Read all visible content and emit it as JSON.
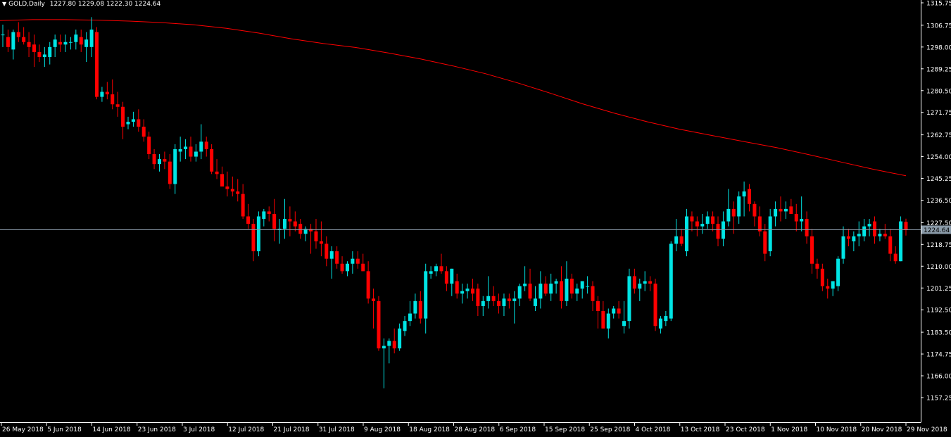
{
  "header": {
    "symbol_timeframe": "GOLD,Daily",
    "ohlc": "1227.80 1229.08 1222.30 1224.64",
    "menu_icon": "triangle-down-icon"
  },
  "chart_data": {
    "type": "candlestick",
    "title": "GOLD,Daily",
    "bull_color": "#00e5e5",
    "bear_color": "#ff0000",
    "ma_color": "#ff0000",
    "grid": false,
    "ylim": [
      1157.25,
      1315.75
    ],
    "y_ticks": [
      "1315.75",
      "1306.75",
      "1298.00",
      "1289.25",
      "1280.50",
      "1271.75",
      "1262.75",
      "1254.00",
      "1245.25",
      "1236.50",
      "1227.50",
      "1218.75",
      "1210.00",
      "1201.25",
      "1192.50",
      "1183.50",
      "1174.75",
      "1166.00",
      "1157.25"
    ],
    "x_ticks": [
      "26 May 2018",
      "5 Jun 2018",
      "14 Jun 2018",
      "23 Jun 2018",
      "3 Jul 2018",
      "12 Jul 2018",
      "21 Jul 2018",
      "31 Jul 2018",
      "9 Aug 2018",
      "18 Aug 2018",
      "28 Aug 2018",
      "6 Sep 2018",
      "15 Sep 2018",
      "25 Sep 2018",
      "4 Oct 2018",
      "13 Oct 2018",
      "23 Oct 2018",
      "1 Nov 2018",
      "10 Nov 2018",
      "20 Nov 2018",
      "29 Nov 2018"
    ],
    "current_price": 1224.64,
    "current_price_label": "1224.64",
    "moving_average": [
      1308.6,
      1309.0,
      1309.0,
      1308.8,
      1308.4,
      1307.8,
      1306.9,
      1305.5,
      1303.6,
      1301.3,
      1299.4,
      1297.8,
      1295.6,
      1293.2,
      1290.4,
      1287.3,
      1283.6,
      1279.5,
      1275.2,
      1271.4,
      1268.0,
      1265.0,
      1262.5,
      1260.0,
      1257.6,
      1254.8,
      1251.8,
      1248.9,
      1246.3
    ],
    "candles": [
      {
        "o": 1303.0,
        "h": 1307.0,
        "l": 1298.0,
        "c": 1303.0
      },
      {
        "o": 1302.0,
        "h": 1305.0,
        "l": 1296.0,
        "c": 1298.0
      },
      {
        "o": 1297.0,
        "h": 1305.0,
        "l": 1293.0,
        "c": 1304.0
      },
      {
        "o": 1304.0,
        "h": 1308.0,
        "l": 1300.0,
        "c": 1302.0
      },
      {
        "o": 1302.0,
        "h": 1306.0,
        "l": 1299.0,
        "c": 1300.0
      },
      {
        "o": 1300.0,
        "h": 1304.0,
        "l": 1294.0,
        "c": 1298.0
      },
      {
        "o": 1299.0,
        "h": 1303.0,
        "l": 1290.0,
        "c": 1296.0
      },
      {
        "o": 1296.0,
        "h": 1299.0,
        "l": 1292.0,
        "c": 1294.0
      },
      {
        "o": 1294.0,
        "h": 1298.0,
        "l": 1290.0,
        "c": 1295.0
      },
      {
        "o": 1294.0,
        "h": 1300.0,
        "l": 1291.0,
        "c": 1298.0
      },
      {
        "o": 1298.0,
        "h": 1303.0,
        "l": 1294.0,
        "c": 1301.0
      },
      {
        "o": 1300.0,
        "h": 1303.0,
        "l": 1296.0,
        "c": 1299.0
      },
      {
        "o": 1299.0,
        "h": 1303.0,
        "l": 1296.0,
        "c": 1300.0
      },
      {
        "o": 1300.0,
        "h": 1302.0,
        "l": 1297.0,
        "c": 1300.0
      },
      {
        "o": 1300.0,
        "h": 1305.0,
        "l": 1297.0,
        "c": 1303.0
      },
      {
        "o": 1302.0,
        "h": 1305.0,
        "l": 1296.0,
        "c": 1299.0
      },
      {
        "o": 1298.0,
        "h": 1304.0,
        "l": 1292.0,
        "c": 1301.0
      },
      {
        "o": 1298.0,
        "h": 1310.0,
        "l": 1294.0,
        "c": 1305.0
      },
      {
        "o": 1304.0,
        "h": 1306.0,
        "l": 1277.0,
        "c": 1278.0
      },
      {
        "o": 1278.0,
        "h": 1282.0,
        "l": 1276.0,
        "c": 1280.0
      },
      {
        "o": 1280.0,
        "h": 1284.0,
        "l": 1277.0,
        "c": 1279.0
      },
      {
        "o": 1279.0,
        "h": 1285.0,
        "l": 1273.0,
        "c": 1275.0
      },
      {
        "o": 1275.0,
        "h": 1280.0,
        "l": 1270.0,
        "c": 1274.0
      },
      {
        "o": 1274.0,
        "h": 1276.0,
        "l": 1261.0,
        "c": 1266.0
      },
      {
        "o": 1267.0,
        "h": 1270.0,
        "l": 1265.0,
        "c": 1268.0
      },
      {
        "o": 1268.0,
        "h": 1272.0,
        "l": 1266.0,
        "c": 1269.0
      },
      {
        "o": 1269.0,
        "h": 1273.0,
        "l": 1264.0,
        "c": 1266.0
      },
      {
        "o": 1266.0,
        "h": 1269.0,
        "l": 1260.0,
        "c": 1262.0
      },
      {
        "o": 1262.0,
        "h": 1264.0,
        "l": 1253.0,
        "c": 1255.0
      },
      {
        "o": 1255.0,
        "h": 1257.0,
        "l": 1249.0,
        "c": 1251.0
      },
      {
        "o": 1251.0,
        "h": 1255.0,
        "l": 1248.0,
        "c": 1253.0
      },
      {
        "o": 1253.0,
        "h": 1256.0,
        "l": 1249.0,
        "c": 1252.0
      },
      {
        "o": 1252.0,
        "h": 1255.0,
        "l": 1241.0,
        "c": 1243.0
      },
      {
        "o": 1243.0,
        "h": 1259.0,
        "l": 1239.0,
        "c": 1257.0
      },
      {
        "o": 1256.0,
        "h": 1262.0,
        "l": 1252.0,
        "c": 1257.0
      },
      {
        "o": 1257.0,
        "h": 1261.0,
        "l": 1253.0,
        "c": 1258.0
      },
      {
        "o": 1258.0,
        "h": 1262.0,
        "l": 1252.0,
        "c": 1254.0
      },
      {
        "o": 1254.0,
        "h": 1259.0,
        "l": 1252.0,
        "c": 1256.0
      },
      {
        "o": 1256.0,
        "h": 1267.0,
        "l": 1253.0,
        "c": 1260.0
      },
      {
        "o": 1260.0,
        "h": 1262.0,
        "l": 1254.0,
        "c": 1257.0
      },
      {
        "o": 1257.0,
        "h": 1259.0,
        "l": 1247.0,
        "c": 1248.0
      },
      {
        "o": 1248.0,
        "h": 1253.0,
        "l": 1245.0,
        "c": 1247.0
      },
      {
        "o": 1247.0,
        "h": 1250.0,
        "l": 1242.0,
        "c": 1242.0
      },
      {
        "o": 1242.0,
        "h": 1248.0,
        "l": 1238.0,
        "c": 1241.0
      },
      {
        "o": 1241.0,
        "h": 1246.0,
        "l": 1238.0,
        "c": 1240.0
      },
      {
        "o": 1240.0,
        "h": 1245.0,
        "l": 1236.0,
        "c": 1239.0
      },
      {
        "o": 1239.0,
        "h": 1243.0,
        "l": 1229.0,
        "c": 1230.0
      },
      {
        "o": 1230.0,
        "h": 1235.0,
        "l": 1225.0,
        "c": 1227.0
      },
      {
        "o": 1227.0,
        "h": 1229.0,
        "l": 1212.0,
        "c": 1216.0
      },
      {
        "o": 1216.0,
        "h": 1232.0,
        "l": 1214.0,
        "c": 1230.0
      },
      {
        "o": 1229.0,
        "h": 1233.0,
        "l": 1226.0,
        "c": 1232.0
      },
      {
        "o": 1232.0,
        "h": 1234.0,
        "l": 1228.0,
        "c": 1231.0
      },
      {
        "o": 1231.0,
        "h": 1237.0,
        "l": 1220.0,
        "c": 1225.0
      },
      {
        "o": 1225.0,
        "h": 1229.0,
        "l": 1219.0,
        "c": 1225.0
      },
      {
        "o": 1225.0,
        "h": 1237.0,
        "l": 1221.0,
        "c": 1229.0
      },
      {
        "o": 1229.0,
        "h": 1234.0,
        "l": 1222.0,
        "c": 1228.0
      },
      {
        "o": 1228.0,
        "h": 1232.0,
        "l": 1224.0,
        "c": 1226.0
      },
      {
        "o": 1227.0,
        "h": 1229.0,
        "l": 1221.0,
        "c": 1223.0
      },
      {
        "o": 1223.0,
        "h": 1226.0,
        "l": 1220.0,
        "c": 1225.0
      },
      {
        "o": 1225.0,
        "h": 1227.0,
        "l": 1215.0,
        "c": 1224.0
      },
      {
        "o": 1224.0,
        "h": 1229.0,
        "l": 1217.0,
        "c": 1220.0
      },
      {
        "o": 1220.0,
        "h": 1228.0,
        "l": 1214.0,
        "c": 1219.0
      },
      {
        "o": 1219.0,
        "h": 1222.0,
        "l": 1210.0,
        "c": 1213.0
      },
      {
        "o": 1213.0,
        "h": 1218.0,
        "l": 1205.0,
        "c": 1216.0
      },
      {
        "o": 1216.0,
        "h": 1218.0,
        "l": 1209.0,
        "c": 1211.0
      },
      {
        "o": 1211.0,
        "h": 1214.0,
        "l": 1207.0,
        "c": 1208.0
      },
      {
        "o": 1208.0,
        "h": 1212.0,
        "l": 1206.0,
        "c": 1211.0
      },
      {
        "o": 1211.0,
        "h": 1216.0,
        "l": 1207.0,
        "c": 1213.0
      },
      {
        "o": 1213.0,
        "h": 1216.0,
        "l": 1209.0,
        "c": 1211.0
      },
      {
        "o": 1211.0,
        "h": 1215.0,
        "l": 1208.0,
        "c": 1208.0
      },
      {
        "o": 1208.0,
        "h": 1212.0,
        "l": 1195.0,
        "c": 1197.0
      },
      {
        "o": 1197.0,
        "h": 1201.0,
        "l": 1185.0,
        "c": 1196.0
      },
      {
        "o": 1196.0,
        "h": 1198.0,
        "l": 1176.0,
        "c": 1177.0
      },
      {
        "o": 1177.0,
        "h": 1181.0,
        "l": 1161.0,
        "c": 1178.0
      },
      {
        "o": 1178.0,
        "h": 1181.0,
        "l": 1171.0,
        "c": 1180.0
      },
      {
        "o": 1180.0,
        "h": 1185.0,
        "l": 1175.0,
        "c": 1177.0
      },
      {
        "o": 1177.0,
        "h": 1187.0,
        "l": 1176.0,
        "c": 1185.0
      },
      {
        "o": 1184.0,
        "h": 1190.0,
        "l": 1182.0,
        "c": 1188.0
      },
      {
        "o": 1188.0,
        "h": 1196.0,
        "l": 1186.0,
        "c": 1191.0
      },
      {
        "o": 1191.0,
        "h": 1199.0,
        "l": 1189.0,
        "c": 1196.0
      },
      {
        "o": 1196.0,
        "h": 1200.0,
        "l": 1187.0,
        "c": 1189.0
      },
      {
        "o": 1189.0,
        "h": 1211.0,
        "l": 1183.0,
        "c": 1208.0
      },
      {
        "o": 1207.0,
        "h": 1210.0,
        "l": 1205.0,
        "c": 1208.0
      },
      {
        "o": 1208.0,
        "h": 1211.0,
        "l": 1206.0,
        "c": 1210.0
      },
      {
        "o": 1210.0,
        "h": 1215.0,
        "l": 1207.0,
        "c": 1208.0
      },
      {
        "o": 1208.0,
        "h": 1210.0,
        "l": 1200.0,
        "c": 1203.0
      },
      {
        "o": 1203.0,
        "h": 1209.0,
        "l": 1198.0,
        "c": 1209.0
      },
      {
        "o": 1204.0,
        "h": 1207.0,
        "l": 1197.0,
        "c": 1199.0
      },
      {
        "o": 1199.0,
        "h": 1203.0,
        "l": 1195.0,
        "c": 1200.0
      },
      {
        "o": 1200.0,
        "h": 1203.0,
        "l": 1197.0,
        "c": 1201.0
      },
      {
        "o": 1201.0,
        "h": 1205.0,
        "l": 1196.0,
        "c": 1199.0
      },
      {
        "o": 1201.0,
        "h": 1203.0,
        "l": 1190.0,
        "c": 1194.0
      },
      {
        "o": 1194.0,
        "h": 1198.0,
        "l": 1190.0,
        "c": 1196.0
      },
      {
        "o": 1196.0,
        "h": 1206.0,
        "l": 1193.0,
        "c": 1198.0
      },
      {
        "o": 1198.0,
        "h": 1202.0,
        "l": 1194.0,
        "c": 1196.0
      },
      {
        "o": 1196.0,
        "h": 1199.0,
        "l": 1191.0,
        "c": 1194.0
      },
      {
        "o": 1194.0,
        "h": 1199.0,
        "l": 1190.0,
        "c": 1197.0
      },
      {
        "o": 1197.0,
        "h": 1199.0,
        "l": 1193.0,
        "c": 1196.0
      },
      {
        "o": 1196.0,
        "h": 1200.0,
        "l": 1187.0,
        "c": 1197.0
      },
      {
        "o": 1197.0,
        "h": 1203.0,
        "l": 1194.0,
        "c": 1202.0
      },
      {
        "o": 1202.0,
        "h": 1210.0,
        "l": 1200.0,
        "c": 1203.0
      },
      {
        "o": 1203.0,
        "h": 1209.0,
        "l": 1196.0,
        "c": 1197.0
      },
      {
        "o": 1194.0,
        "h": 1202.0,
        "l": 1192.0,
        "c": 1197.0
      },
      {
        "o": 1197.0,
        "h": 1208.0,
        "l": 1193.0,
        "c": 1203.0
      },
      {
        "o": 1203.0,
        "h": 1206.0,
        "l": 1198.0,
        "c": 1199.0
      },
      {
        "o": 1199.0,
        "h": 1207.0,
        "l": 1196.0,
        "c": 1203.0
      },
      {
        "o": 1203.0,
        "h": 1205.0,
        "l": 1199.0,
        "c": 1204.0
      },
      {
        "o": 1204.0,
        "h": 1210.0,
        "l": 1193.0,
        "c": 1196.0
      },
      {
        "o": 1196.0,
        "h": 1212.0,
        "l": 1194.0,
        "c": 1205.0
      },
      {
        "o": 1205.0,
        "h": 1207.0,
        "l": 1197.0,
        "c": 1199.0
      },
      {
        "o": 1199.0,
        "h": 1203.0,
        "l": 1196.0,
        "c": 1201.0
      },
      {
        "o": 1201.0,
        "h": 1204.0,
        "l": 1197.0,
        "c": 1204.0
      },
      {
        "o": 1202.0,
        "h": 1206.0,
        "l": 1199.0,
        "c": 1202.0
      },
      {
        "o": 1202.0,
        "h": 1204.0,
        "l": 1192.0,
        "c": 1196.0
      },
      {
        "o": 1196.0,
        "h": 1198.0,
        "l": 1185.0,
        "c": 1192.0
      },
      {
        "o": 1192.0,
        "h": 1196.0,
        "l": 1185.0,
        "c": 1185.0
      },
      {
        "o": 1185.0,
        "h": 1193.0,
        "l": 1181.0,
        "c": 1191.0
      },
      {
        "o": 1191.0,
        "h": 1194.0,
        "l": 1189.0,
        "c": 1193.0
      },
      {
        "o": 1193.0,
        "h": 1196.0,
        "l": 1189.0,
        "c": 1191.0
      },
      {
        "o": 1186.0,
        "h": 1196.0,
        "l": 1183.0,
        "c": 1188.0
      },
      {
        "o": 1188.0,
        "h": 1209.0,
        "l": 1185.0,
        "c": 1206.0
      },
      {
        "o": 1206.0,
        "h": 1209.0,
        "l": 1199.0,
        "c": 1201.0
      },
      {
        "o": 1201.0,
        "h": 1205.0,
        "l": 1196.0,
        "c": 1203.0
      },
      {
        "o": 1203.0,
        "h": 1208.0,
        "l": 1200.0,
        "c": 1204.0
      },
      {
        "o": 1204.0,
        "h": 1206.0,
        "l": 1200.0,
        "c": 1203.0
      },
      {
        "o": 1203.0,
        "h": 1205.0,
        "l": 1184.0,
        "c": 1186.0
      },
      {
        "o": 1185.0,
        "h": 1190.0,
        "l": 1183.0,
        "c": 1189.0
      },
      {
        "o": 1188.0,
        "h": 1192.0,
        "l": 1186.0,
        "c": 1190.0
      },
      {
        "o": 1189.0,
        "h": 1220.0,
        "l": 1188.0,
        "c": 1219.0
      },
      {
        "o": 1219.0,
        "h": 1229.0,
        "l": 1216.0,
        "c": 1222.0
      },
      {
        "o": 1222.0,
        "h": 1225.0,
        "l": 1218.0,
        "c": 1219.0
      },
      {
        "o": 1216.0,
        "h": 1233.0,
        "l": 1214.0,
        "c": 1230.0
      },
      {
        "o": 1230.0,
        "h": 1232.0,
        "l": 1224.0,
        "c": 1228.0
      },
      {
        "o": 1228.0,
        "h": 1230.0,
        "l": 1222.0,
        "c": 1226.0
      },
      {
        "o": 1226.0,
        "h": 1231.0,
        "l": 1223.0,
        "c": 1227.0
      },
      {
        "o": 1227.0,
        "h": 1232.0,
        "l": 1225.0,
        "c": 1230.0
      },
      {
        "o": 1230.0,
        "h": 1232.0,
        "l": 1224.0,
        "c": 1227.0
      },
      {
        "o": 1227.0,
        "h": 1230.0,
        "l": 1218.0,
        "c": 1221.0
      },
      {
        "o": 1221.0,
        "h": 1232.0,
        "l": 1218.0,
        "c": 1228.0
      },
      {
        "o": 1228.0,
        "h": 1241.0,
        "l": 1226.0,
        "c": 1233.0
      },
      {
        "o": 1233.0,
        "h": 1236.0,
        "l": 1223.0,
        "c": 1230.0
      },
      {
        "o": 1230.0,
        "h": 1240.0,
        "l": 1227.0,
        "c": 1238.0
      },
      {
        "o": 1238.0,
        "h": 1244.0,
        "l": 1230.0,
        "c": 1240.0
      },
      {
        "o": 1241.0,
        "h": 1243.0,
        "l": 1232.0,
        "c": 1235.0
      },
      {
        "o": 1235.0,
        "h": 1236.0,
        "l": 1226.0,
        "c": 1230.0
      },
      {
        "o": 1230.0,
        "h": 1234.0,
        "l": 1222.0,
        "c": 1224.0
      },
      {
        "o": 1224.0,
        "h": 1227.0,
        "l": 1212.0,
        "c": 1215.0
      },
      {
        "o": 1216.0,
        "h": 1233.0,
        "l": 1214.0,
        "c": 1230.0
      },
      {
        "o": 1230.0,
        "h": 1236.0,
        "l": 1226.0,
        "c": 1233.0
      },
      {
        "o": 1233.0,
        "h": 1238.0,
        "l": 1228.0,
        "c": 1232.0
      },
      {
        "o": 1232.0,
        "h": 1236.0,
        "l": 1229.0,
        "c": 1233.0
      },
      {
        "o": 1234.0,
        "h": 1237.0,
        "l": 1231.0,
        "c": 1231.0
      },
      {
        "o": 1231.0,
        "h": 1235.0,
        "l": 1224.0,
        "c": 1228.0
      },
      {
        "o": 1228.0,
        "h": 1238.0,
        "l": 1224.0,
        "c": 1229.0
      },
      {
        "o": 1229.0,
        "h": 1232.0,
        "l": 1219.0,
        "c": 1222.0
      },
      {
        "o": 1222.0,
        "h": 1225.0,
        "l": 1207.0,
        "c": 1211.0
      },
      {
        "o": 1211.0,
        "h": 1213.0,
        "l": 1205.0,
        "c": 1209.0
      },
      {
        "o": 1209.0,
        "h": 1211.0,
        "l": 1200.0,
        "c": 1202.0
      },
      {
        "o": 1202.0,
        "h": 1205.0,
        "l": 1197.0,
        "c": 1201.0
      },
      {
        "o": 1201.0,
        "h": 1204.0,
        "l": 1198.0,
        "c": 1204.0
      },
      {
        "o": 1202.0,
        "h": 1214.0,
        "l": 1200.0,
        "c": 1213.0
      },
      {
        "o": 1213.0,
        "h": 1226.0,
        "l": 1211.0,
        "c": 1222.0
      },
      {
        "o": 1222.0,
        "h": 1225.0,
        "l": 1218.0,
        "c": 1221.0
      },
      {
        "o": 1220.0,
        "h": 1224.0,
        "l": 1216.0,
        "c": 1222.0
      },
      {
        "o": 1222.0,
        "h": 1228.0,
        "l": 1218.0,
        "c": 1223.0
      },
      {
        "o": 1222.0,
        "h": 1229.0,
        "l": 1220.0,
        "c": 1226.0
      },
      {
        "o": 1226.0,
        "h": 1229.0,
        "l": 1222.0,
        "c": 1227.0
      },
      {
        "o": 1228.0,
        "h": 1230.0,
        "l": 1219.0,
        "c": 1222.0
      },
      {
        "o": 1222.0,
        "h": 1225.0,
        "l": 1220.0,
        "c": 1223.0
      },
      {
        "o": 1223.0,
        "h": 1227.0,
        "l": 1221.0,
        "c": 1222.0
      },
      {
        "o": 1222.0,
        "h": 1225.0,
        "l": 1212.0,
        "c": 1215.0
      },
      {
        "o": 1215.0,
        "h": 1218.0,
        "l": 1211.0,
        "c": 1212.0
      },
      {
        "o": 1212.0,
        "h": 1230.0,
        "l": 1212.0,
        "c": 1228.0
      },
      {
        "o": 1227.8,
        "h": 1229.08,
        "l": 1222.3,
        "c": 1224.64
      }
    ]
  }
}
